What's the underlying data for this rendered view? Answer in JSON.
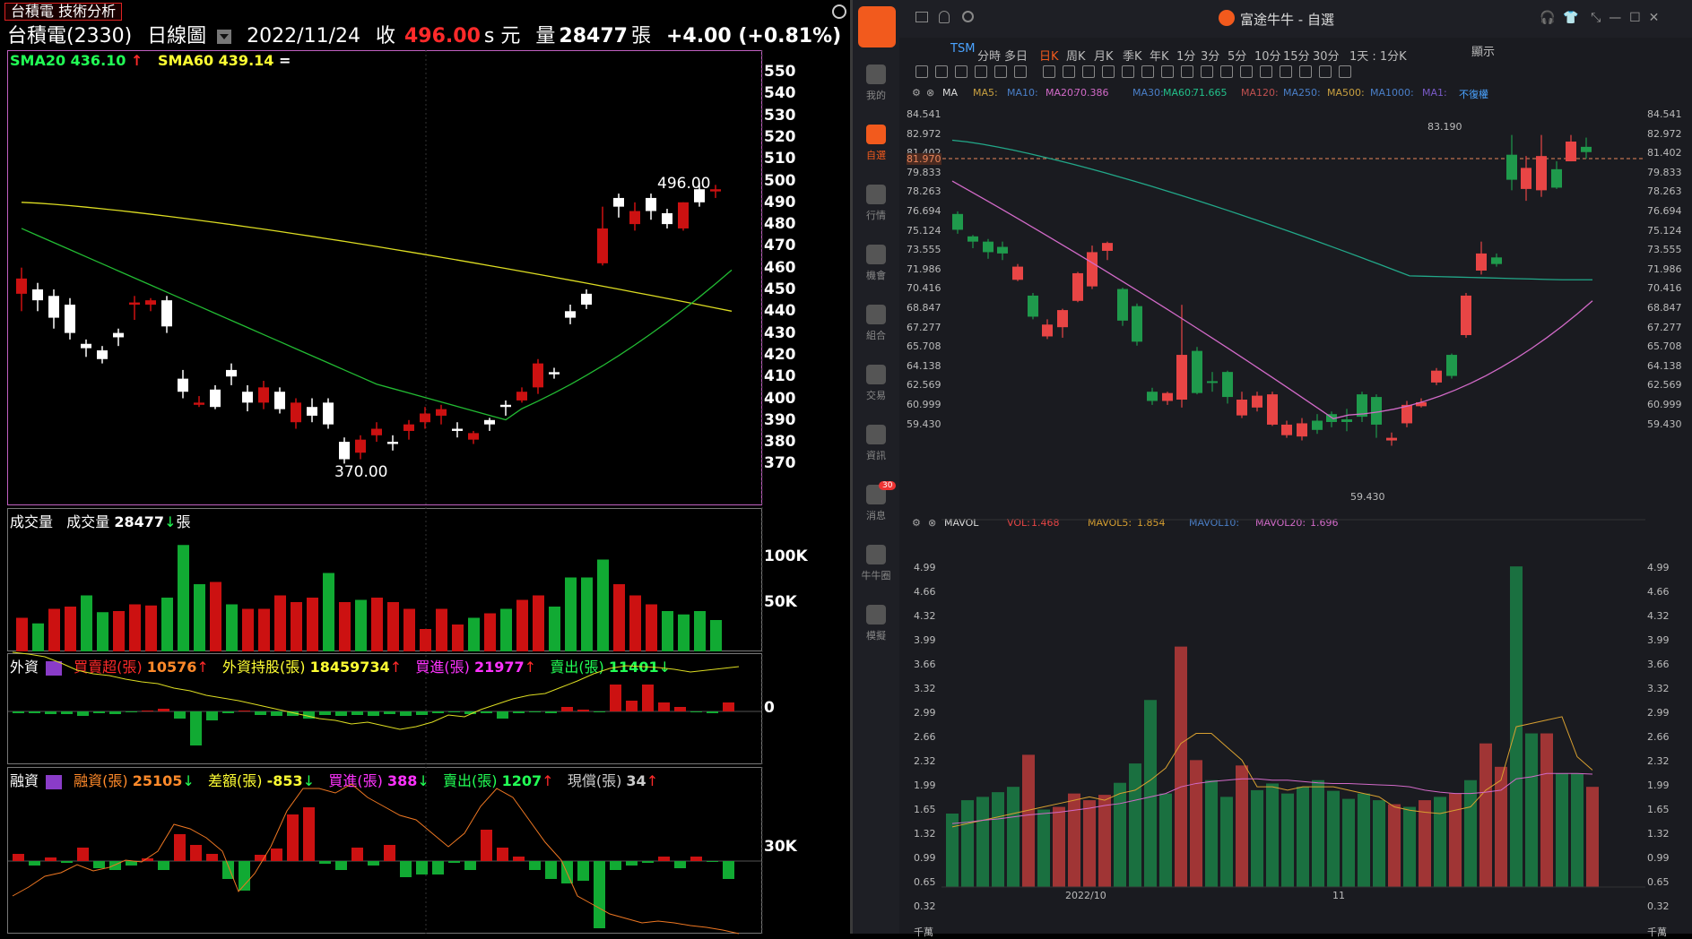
{
  "left": {
    "title_tag": "台積電 技術分析",
    "header": {
      "stock": "台積電(2330)",
      "chart_type": "日線圖",
      "date": "2022/11/24",
      "close_label": "收",
      "close_value": "496.00",
      "close_unit": "s 元",
      "vol_label": "量",
      "vol_value": "28477",
      "vol_unit": "張",
      "change": "+4.00 (+0.81%)"
    },
    "sma20": "SMA20 436.10",
    "sma20_arrow": "↑",
    "sma60": "SMA60 439.14",
    "sma60_arrow": "=",
    "high_label": "496.00",
    "low_label": "370.00",
    "price_axis": [
      "550",
      "540",
      "530",
      "520",
      "510",
      "500",
      "490",
      "480",
      "470",
      "460",
      "450",
      "440",
      "430",
      "420",
      "410",
      "400",
      "390",
      "380",
      "370"
    ],
    "volume": {
      "label": "成交量",
      "label2": "成交量",
      "value": "28477",
      "arrow": "↓",
      "unit": "張",
      "axis": [
        "100K",
        "50K"
      ]
    },
    "foreign": {
      "label": "外資",
      "net_label": "買賣超(張)",
      "net_value": "10576",
      "net_arrow": "↑",
      "hold_label": "外資持股(張)",
      "hold_value": "18459734",
      "hold_arrow": "↑",
      "buy_label": "買進(張)",
      "buy_value": "21977",
      "buy_arrow": "↑",
      "sell_label": "賣出(張)",
      "sell_value": "11401",
      "sell_arrow": "↓",
      "axis": "0"
    },
    "margin": {
      "label": "融資",
      "m1_label": "融資(張)",
      "m1_value": "25105",
      "m1_arrow": "↓",
      "m2_label": "差額(張)",
      "m2_value": "-853",
      "m2_arrow": "↓",
      "m3_label": "買進(張)",
      "m3_value": "388",
      "m3_arrow": "↓",
      "m4_label": "賣出(張)",
      "m4_value": "1207",
      "m4_arrow": "↑",
      "m5_label": "現償(張)",
      "m5_value": "34",
      "m5_arrow": "↑",
      "axis": "30K"
    }
  },
  "right": {
    "window_title": "富途牛牛 - 自選",
    "sidebar": [
      {
        "label": "我的",
        "icon": "user-icon"
      },
      {
        "label": "自選",
        "icon": "watchlist-icon"
      },
      {
        "label": "行情",
        "icon": "market-icon"
      },
      {
        "label": "機會",
        "icon": "opportunity-icon"
      },
      {
        "label": "組合",
        "icon": "portfolio-icon"
      },
      {
        "label": "交易",
        "icon": "trade-icon"
      },
      {
        "label": "資訊",
        "icon": "news-icon"
      },
      {
        "label": "消息",
        "icon": "message-icon",
        "badge": "30"
      },
      {
        "label": "牛牛圈",
        "icon": "community-icon"
      },
      {
        "label": "模擬",
        "icon": "simulate-icon"
      }
    ],
    "symbol": "TSM",
    "tabs": [
      "分時",
      "多日",
      "日K",
      "周K",
      "月K",
      "季K",
      "年K",
      "1分",
      "3分",
      "5分",
      "10分",
      "15分",
      "30分",
      "1天 : 1分K"
    ],
    "active_tab": "日K",
    "display_label": "顯示",
    "ma_legend": {
      "ma": "MA",
      "ma5": "MA5:",
      "ma10": "MA10:",
      "ma20": "MA20:",
      "ma20_val": "70.386",
      "ma30": "MA30:",
      "ma60": "MA60:",
      "ma60_val": "71.665",
      "ma120": "MA120:",
      "ma250": "MA250:",
      "ma500": "MA500:",
      "ma1000": "MA1000:",
      "ma1": "MA1:",
      "restore": "不復權"
    },
    "price_axis": [
      "84.541",
      "82.972",
      "81.402",
      "79.833",
      "78.263",
      "76.694",
      "75.124",
      "73.555",
      "71.986",
      "70.416",
      "68.847",
      "67.277",
      "65.708",
      "64.138",
      "62.569",
      "60.999",
      "59.430"
    ],
    "current_price": "81.970",
    "high_label": "83.190",
    "low_label": "59.430",
    "vol_legend": {
      "name": "MAVOL",
      "vol": "VOL:",
      "vol_val": "1.468",
      "mavol5": "MAVOL5:",
      "mavol5_val": "1.854",
      "mavol10": "MAVOL10:",
      "mavol20": "MAVOL20:",
      "mavol20_val": "1.696"
    },
    "vol_axis": [
      "4.99",
      "4.66",
      "4.32",
      "3.99",
      "3.66",
      "3.32",
      "2.99",
      "2.66",
      "2.32",
      "1.99",
      "1.65",
      "1.32",
      "0.99",
      "0.65",
      "0.32",
      "千萬"
    ],
    "date_labels": [
      "2022/10",
      "11"
    ],
    "colors": {
      "up": "#e84545",
      "down": "#1f9a4c",
      "ma20": "#d26ac8",
      "ma60": "#22a889"
    }
  }
}
